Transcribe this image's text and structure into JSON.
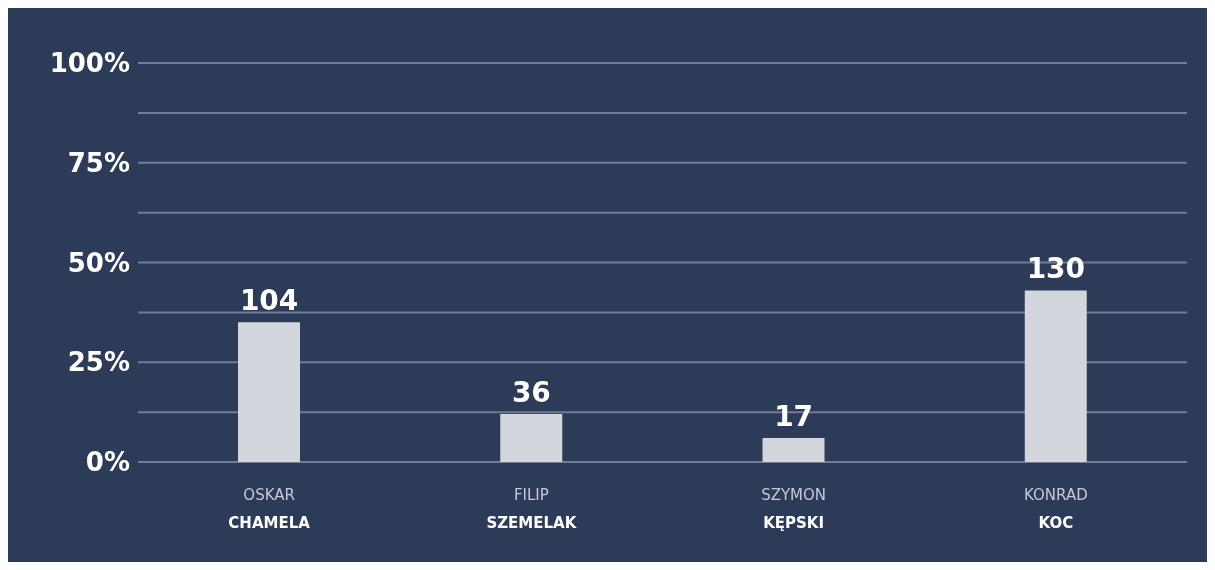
{
  "chart_data": {
    "type": "bar",
    "categories": [
      "OSKAR\nCHAMELA",
      "FILIP\nSZEMELAK",
      "SZYMON\nKĘPSKI",
      "KONRAD\nKOC"
    ],
    "values": [
      35,
      12,
      6,
      43
    ],
    "annotations": [
      {
        "text": "104",
        "x": "OSKAR\nCHAMELA",
        "y": 35
      },
      {
        "text": "36",
        "x": "FILIP\nSZEMELAK",
        "y": 12
      },
      {
        "text": "17",
        "x": "SZYMON\nKĘPSKI",
        "y": 6
      },
      {
        "text": "130",
        "x": "KONRAD\nKOC",
        "y": 43
      }
    ],
    "color": "#d3d6dd",
    "ylim": [
      0,
      100
    ],
    "yticks": [
      {
        "value": 0,
        "label": "0%"
      },
      {
        "value": 12.5,
        "label": null
      },
      {
        "value": 25,
        "label": "25%"
      },
      {
        "value": 37.5,
        "label": null
      },
      {
        "value": 50,
        "label": "50%"
      },
      {
        "value": 62.5,
        "label": null
      },
      {
        "value": 75,
        "label": "75%"
      },
      {
        "value": 87.5,
        "label": null
      },
      {
        "value": 100,
        "label": "100%"
      }
    ],
    "grid": "y"
  }
}
